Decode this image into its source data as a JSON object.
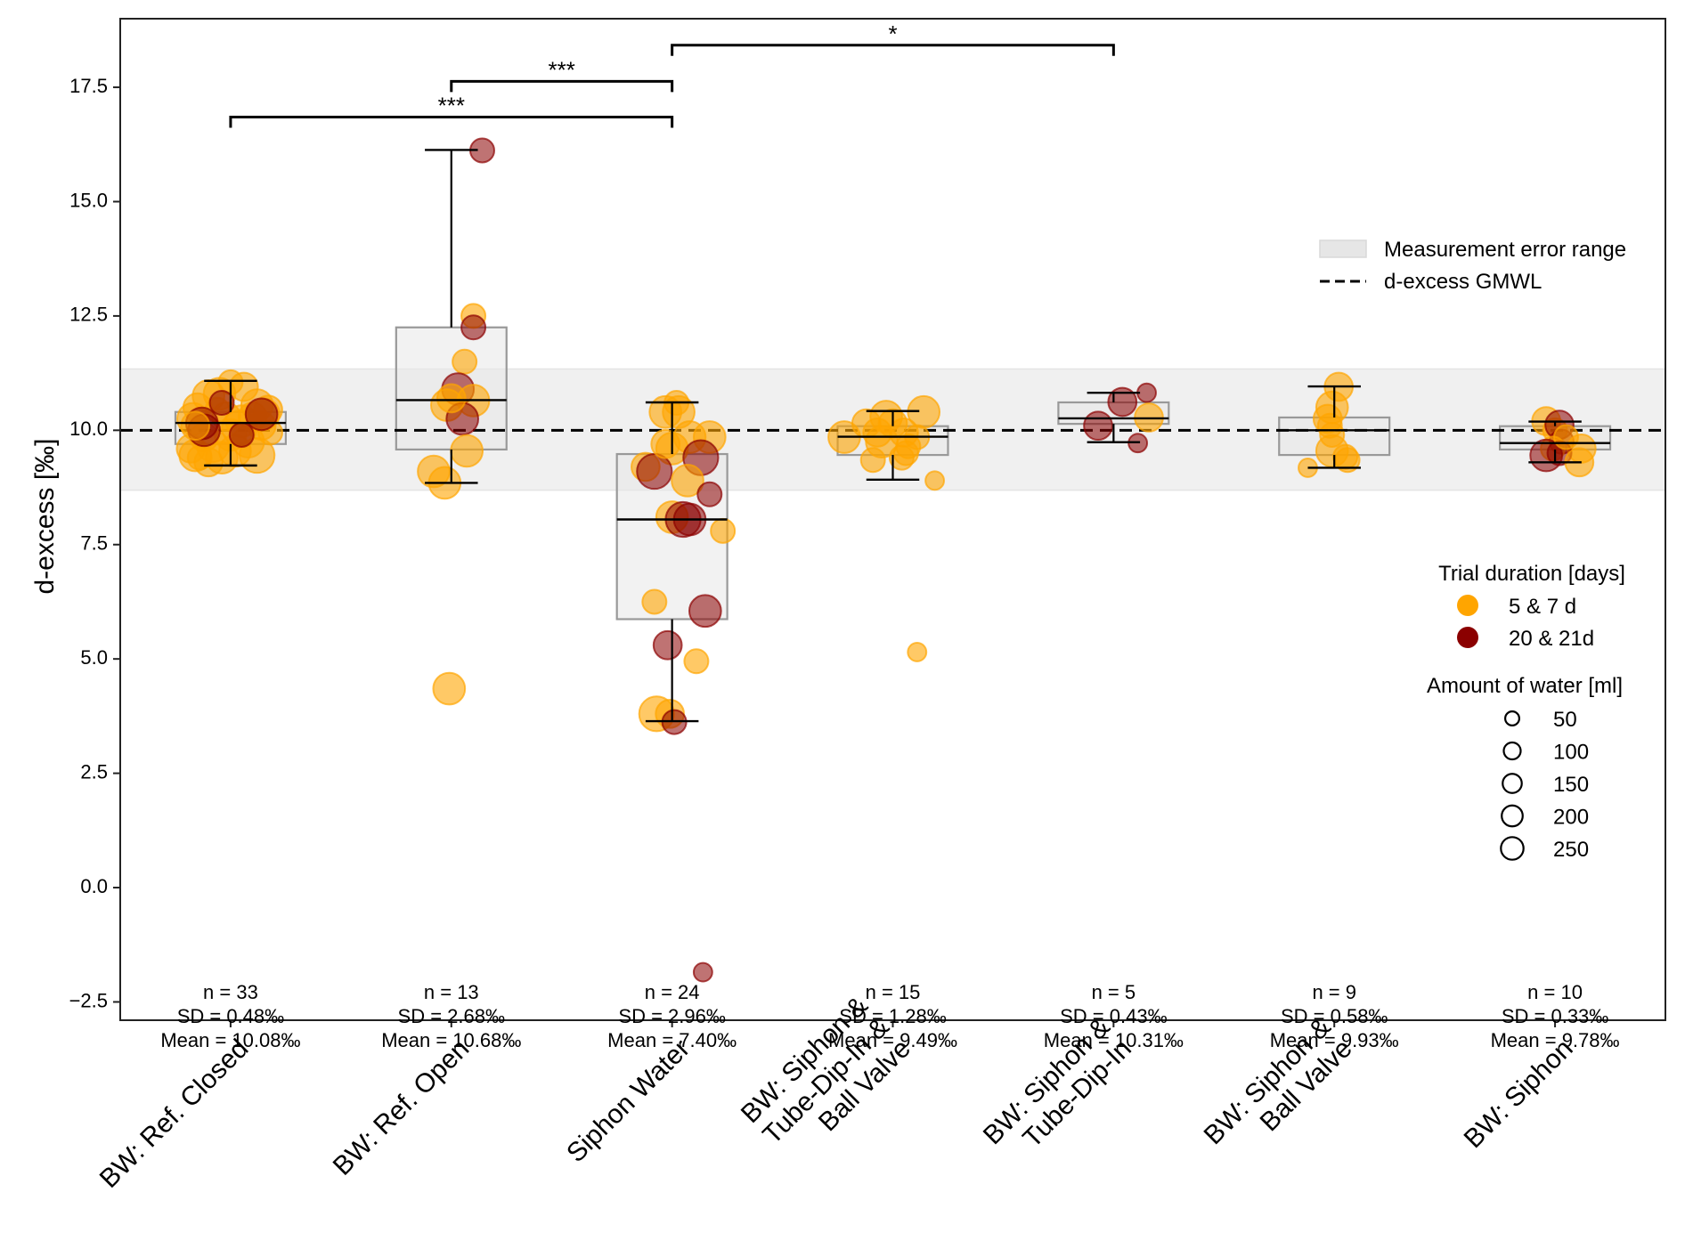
{
  "chart_data": {
    "type": "box",
    "title": "",
    "xlabel": "",
    "ylabel": "d-excess [‰]",
    "ylim": [
      -2.9,
      19.0
    ],
    "yticks": [
      -2.5,
      0.0,
      2.5,
      5.0,
      7.5,
      10.0,
      12.5,
      15.0,
      17.5
    ],
    "ytick_labels": [
      "−2.5",
      "0.0",
      "2.5",
      "5.0",
      "7.5",
      "10.0",
      "12.5",
      "15.0",
      "17.5"
    ],
    "grid": false,
    "categories": [
      [
        "BW: Ref. Closed"
      ],
      [
        "BW: Ref. Open"
      ],
      [
        "Siphon Water"
      ],
      [
        "BW: Siphon &",
        "Tube-Dip-In &",
        "Ball Valve"
      ],
      [
        "BW: Siphon &",
        "Tube-Dip-In"
      ],
      [
        "BW: Siphon &",
        "Ball Valve"
      ],
      [
        "BW: Siphon"
      ]
    ],
    "boxes": [
      {
        "whislo": 9.23,
        "q1": 9.7,
        "med": 10.16,
        "q3": 10.4,
        "whishi": 11.08
      },
      {
        "whislo": 8.85,
        "q1": 9.58,
        "med": 10.66,
        "q3": 12.25,
        "whishi": 16.13
      },
      {
        "whislo": 3.64,
        "q1": 5.87,
        "med": 8.05,
        "q3": 9.48,
        "whishi": 10.61
      },
      {
        "whislo": 8.92,
        "q1": 9.46,
        "med": 9.86,
        "q3": 10.09,
        "whishi": 10.42
      },
      {
        "whislo": 9.74,
        "q1": 10.14,
        "med": 10.26,
        "q3": 10.61,
        "whishi": 10.82
      },
      {
        "whislo": 9.18,
        "q1": 9.46,
        "med": 10.0,
        "q3": 10.28,
        "whishi": 10.96
      },
      {
        "whislo": 9.3,
        "q1": 9.58,
        "med": 9.72,
        "q3": 10.09,
        "whishi": 10.19
      }
    ],
    "stats": [
      {
        "n": "n = 33",
        "sd": "SD = 0.48‰",
        "mean": "Mean = 10.08‰"
      },
      {
        "n": "n = 13",
        "sd": "SD = 2.68‰",
        "mean": "Mean = 10.68‰"
      },
      {
        "n": "n = 24",
        "sd": "SD = 2.96‰",
        "mean": "Mean = 7.40‰"
      },
      {
        "n": "n = 15",
        "sd": "SD = 1.28‰",
        "mean": "Mean = 9.49‰"
      },
      {
        "n": "n = 5",
        "sd": "SD = 0.43‰",
        "mean": "Mean = 10.31‰"
      },
      {
        "n": "n = 9",
        "sd": "SD = 0.58‰",
        "mean": "Mean = 9.93‰"
      },
      {
        "n": "n = 10",
        "sd": "SD = 0.33‰",
        "mean": "Mean = 9.78‰"
      }
    ],
    "stats_y": -2.2,
    "reference_line": {
      "label": "d-excess GMWL",
      "value": 10.0
    },
    "error_band": {
      "label": "Measurement error range",
      "low": 8.69,
      "high": 11.34
    },
    "significance": [
      {
        "from": 0,
        "to": 2,
        "y": 16.85,
        "label": "***"
      },
      {
        "from": 1,
        "to": 2,
        "y": 17.63,
        "label": "***"
      },
      {
        "from": 2,
        "to": 4,
        "y": 18.42,
        "label": "*"
      }
    ],
    "colors": {
      "short": "#FFA500",
      "long": "#8B0000",
      "box_fill": "#e8e8e8",
      "box_edge": "#999999",
      "band": "#f0f0f0"
    },
    "legend": {
      "position": "right",
      "duration_title": "Trial duration [days]",
      "duration_items": [
        {
          "label": "5 & 7 d",
          "group": "short"
        },
        {
          "label": "20 & 21d",
          "group": "long"
        }
      ],
      "water_title": "Amount of water [ml]",
      "water_items": [
        {
          "label": "50",
          "ml": 50
        },
        {
          "label": "100",
          "ml": 100
        },
        {
          "label": "150",
          "ml": 150
        },
        {
          "label": "200",
          "ml": 200
        },
        {
          "label": "250",
          "ml": 250
        }
      ]
    },
    "points": [
      {
        "c": 0,
        "dx": -0.1,
        "y": 10.75,
        "g": "short",
        "ml": 200
      },
      {
        "c": 0,
        "dx": -0.15,
        "y": 10.5,
        "g": "short",
        "ml": 150
      },
      {
        "c": 0,
        "dx": -0.05,
        "y": 10.8,
        "g": "short",
        "ml": 200
      },
      {
        "c": 0,
        "dx": 0.12,
        "y": 10.55,
        "g": "short",
        "ml": 200
      },
      {
        "c": 0,
        "dx": 0.06,
        "y": 10.95,
        "g": "short",
        "ml": 150
      },
      {
        "c": 0,
        "dx": 0.0,
        "y": 11.05,
        "g": "short",
        "ml": 100
      },
      {
        "c": 0,
        "dx": -0.17,
        "y": 10.25,
        "g": "short",
        "ml": 200
      },
      {
        "c": 0,
        "dx": -0.02,
        "y": 10.3,
        "g": "short",
        "ml": 150
      },
      {
        "c": 0,
        "dx": 0.05,
        "y": 10.2,
        "g": "short",
        "ml": 200
      },
      {
        "c": 0,
        "dx": 0.1,
        "y": 10.3,
        "g": "short",
        "ml": 150
      },
      {
        "c": 0,
        "dx": 0.15,
        "y": 10.35,
        "g": "short",
        "ml": 200
      },
      {
        "c": 0,
        "dx": 0.18,
        "y": 9.95,
        "g": "short",
        "ml": 100
      },
      {
        "c": 0,
        "dx": -0.12,
        "y": 9.85,
        "g": "short",
        "ml": 150
      },
      {
        "c": 0,
        "dx": 0.08,
        "y": 9.75,
        "g": "short",
        "ml": 200
      },
      {
        "c": 0,
        "dx": -0.08,
        "y": 9.65,
        "g": "short",
        "ml": 200
      },
      {
        "c": 0,
        "dx": 0.02,
        "y": 9.55,
        "g": "short",
        "ml": 200
      },
      {
        "c": 0,
        "dx": -0.16,
        "y": 9.45,
        "g": "short",
        "ml": 200
      },
      {
        "c": 0,
        "dx": -0.04,
        "y": 9.4,
        "g": "short",
        "ml": 200
      },
      {
        "c": 0,
        "dx": 0.12,
        "y": 9.45,
        "g": "short",
        "ml": 250
      },
      {
        "c": 0,
        "dx": -0.1,
        "y": 9.3,
        "g": "short",
        "ml": 150
      },
      {
        "c": 0,
        "dx": -0.14,
        "y": 9.4,
        "g": "short",
        "ml": 100
      },
      {
        "c": 0,
        "dx": 0.0,
        "y": 9.9,
        "g": "short",
        "ml": 200
      },
      {
        "c": 0,
        "dx": 0.04,
        "y": 10.05,
        "g": "short",
        "ml": 250
      },
      {
        "c": 0,
        "dx": 0.14,
        "y": 10.1,
        "g": "short",
        "ml": 150
      },
      {
        "c": 0,
        "dx": -0.06,
        "y": 10.45,
        "g": "short",
        "ml": 100
      },
      {
        "c": 0,
        "dx": 0.17,
        "y": 10.45,
        "g": "short",
        "ml": 150
      },
      {
        "c": 0,
        "dx": -0.18,
        "y": 9.6,
        "g": "short",
        "ml": 150
      },
      {
        "c": 0,
        "dx": -0.13,
        "y": 10.15,
        "g": "long",
        "ml": 200
      },
      {
        "c": 0,
        "dx": -0.12,
        "y": 10.0,
        "g": "long",
        "ml": 200
      },
      {
        "c": 0,
        "dx": -0.04,
        "y": 10.6,
        "g": "long",
        "ml": 100
      },
      {
        "c": 0,
        "dx": 0.14,
        "y": 10.35,
        "g": "long",
        "ml": 200
      },
      {
        "c": 0,
        "dx": 0.05,
        "y": 9.9,
        "g": "long",
        "ml": 100
      },
      {
        "c": 0,
        "dx": -0.16,
        "y": 10.1,
        "g": "short",
        "ml": 150
      },
      {
        "c": 1,
        "dx": 0.1,
        "y": 12.5,
        "g": "short",
        "ml": 100
      },
      {
        "c": 1,
        "dx": 0.1,
        "y": 12.25,
        "g": "long",
        "ml": 100
      },
      {
        "c": 1,
        "dx": 0.06,
        "y": 11.5,
        "g": "short",
        "ml": 100
      },
      {
        "c": 1,
        "dx": 0.03,
        "y": 10.9,
        "g": "long",
        "ml": 200
      },
      {
        "c": 1,
        "dx": 0.1,
        "y": 10.65,
        "g": "short",
        "ml": 200
      },
      {
        "c": 1,
        "dx": -0.02,
        "y": 10.55,
        "g": "short",
        "ml": 200
      },
      {
        "c": 1,
        "dx": 0.05,
        "y": 10.25,
        "g": "long",
        "ml": 200
      },
      {
        "c": 1,
        "dx": 0.07,
        "y": 9.55,
        "g": "short",
        "ml": 200
      },
      {
        "c": 1,
        "dx": -0.08,
        "y": 9.1,
        "g": "short",
        "ml": 200
      },
      {
        "c": 1,
        "dx": -0.03,
        "y": 8.85,
        "g": "short",
        "ml": 200
      },
      {
        "c": 1,
        "dx": 0.14,
        "y": 16.12,
        "g": "long",
        "ml": 100
      },
      {
        "c": 1,
        "dx": -0.01,
        "y": 4.35,
        "g": "short",
        "ml": 200
      },
      {
        "c": 1,
        "dx": 0.0,
        "y": 10.7,
        "g": "short",
        "ml": 150
      },
      {
        "c": 2,
        "dx": 0.02,
        "y": 10.6,
        "g": "short",
        "ml": 100
      },
      {
        "c": 2,
        "dx": -0.03,
        "y": 10.4,
        "g": "short",
        "ml": 200
      },
      {
        "c": 2,
        "dx": 0.03,
        "y": 10.4,
        "g": "short",
        "ml": 200
      },
      {
        "c": 2,
        "dx": 0.08,
        "y": 9.85,
        "g": "short",
        "ml": 200
      },
      {
        "c": 2,
        "dx": 0.17,
        "y": 9.85,
        "g": "short",
        "ml": 200
      },
      {
        "c": 2,
        "dx": 0.0,
        "y": 9.6,
        "g": "short",
        "ml": 200
      },
      {
        "c": 2,
        "dx": 0.13,
        "y": 9.4,
        "g": "long",
        "ml": 250
      },
      {
        "c": 2,
        "dx": -0.12,
        "y": 9.2,
        "g": "short",
        "ml": 150
      },
      {
        "c": 2,
        "dx": -0.08,
        "y": 9.1,
        "g": "long",
        "ml": 250
      },
      {
        "c": 2,
        "dx": 0.07,
        "y": 8.9,
        "g": "short",
        "ml": 200
      },
      {
        "c": 2,
        "dx": 0.17,
        "y": 8.6,
        "g": "long",
        "ml": 100
      },
      {
        "c": 2,
        "dx": 0.0,
        "y": 8.1,
        "g": "short",
        "ml": 200
      },
      {
        "c": 2,
        "dx": 0.05,
        "y": 8.05,
        "g": "long",
        "ml": 250
      },
      {
        "c": 2,
        "dx": 0.08,
        "y": 8.05,
        "g": "long",
        "ml": 200
      },
      {
        "c": 2,
        "dx": 0.23,
        "y": 7.8,
        "g": "short",
        "ml": 100
      },
      {
        "c": 2,
        "dx": -0.08,
        "y": 6.25,
        "g": "short",
        "ml": 100
      },
      {
        "c": 2,
        "dx": 0.15,
        "y": 6.05,
        "g": "long",
        "ml": 200
      },
      {
        "c": 2,
        "dx": -0.02,
        "y": 5.3,
        "g": "long",
        "ml": 150
      },
      {
        "c": 2,
        "dx": 0.11,
        "y": 4.95,
        "g": "short",
        "ml": 100
      },
      {
        "c": 2,
        "dx": -0.07,
        "y": 3.8,
        "g": "short",
        "ml": 250
      },
      {
        "c": 2,
        "dx": -0.01,
        "y": 3.8,
        "g": "short",
        "ml": 150
      },
      {
        "c": 2,
        "dx": 0.01,
        "y": 3.62,
        "g": "long",
        "ml": 100
      },
      {
        "c": 2,
        "dx": 0.14,
        "y": -1.85,
        "g": "long",
        "ml": 50
      },
      {
        "c": 2,
        "dx": -0.03,
        "y": 9.7,
        "g": "short",
        "ml": 150
      },
      {
        "c": 3,
        "dx": -0.22,
        "y": 9.85,
        "g": "short",
        "ml": 200
      },
      {
        "c": 3,
        "dx": -0.12,
        "y": 10.15,
        "g": "short",
        "ml": 150
      },
      {
        "c": 3,
        "dx": -0.03,
        "y": 10.3,
        "g": "short",
        "ml": 200
      },
      {
        "c": 3,
        "dx": 0.14,
        "y": 10.4,
        "g": "short",
        "ml": 200
      },
      {
        "c": 3,
        "dx": 0.0,
        "y": 10.15,
        "g": "short",
        "ml": 150
      },
      {
        "c": 3,
        "dx": 0.05,
        "y": 9.95,
        "g": "short",
        "ml": 150
      },
      {
        "c": 3,
        "dx": -0.05,
        "y": 9.75,
        "g": "short",
        "ml": 200
      },
      {
        "c": 3,
        "dx": 0.07,
        "y": 9.65,
        "g": "short",
        "ml": 100
      },
      {
        "c": 3,
        "dx": 0.11,
        "y": 9.85,
        "g": "short",
        "ml": 100
      },
      {
        "c": 3,
        "dx": -0.07,
        "y": 9.95,
        "g": "short",
        "ml": 150
      },
      {
        "c": 3,
        "dx": -0.09,
        "y": 9.35,
        "g": "short",
        "ml": 100
      },
      {
        "c": 3,
        "dx": 0.04,
        "y": 9.4,
        "g": "short",
        "ml": 100
      },
      {
        "c": 3,
        "dx": 0.06,
        "y": 9.5,
        "g": "short",
        "ml": 100
      },
      {
        "c": 3,
        "dx": 0.19,
        "y": 8.9,
        "g": "short",
        "ml": 50
      },
      {
        "c": 3,
        "dx": 0.11,
        "y": 5.15,
        "g": "short",
        "ml": 50
      },
      {
        "c": 4,
        "dx": 0.15,
        "y": 10.82,
        "g": "long",
        "ml": 50
      },
      {
        "c": 4,
        "dx": 0.04,
        "y": 10.62,
        "g": "long",
        "ml": 150
      },
      {
        "c": 4,
        "dx": 0.16,
        "y": 10.28,
        "g": "short",
        "ml": 150
      },
      {
        "c": 4,
        "dx": -0.07,
        "y": 10.1,
        "g": "long",
        "ml": 150
      },
      {
        "c": 4,
        "dx": 0.11,
        "y": 9.72,
        "g": "long",
        "ml": 50
      },
      {
        "c": 5,
        "dx": 0.02,
        "y": 10.95,
        "g": "short",
        "ml": 150
      },
      {
        "c": 5,
        "dx": -0.01,
        "y": 10.5,
        "g": "short",
        "ml": 200
      },
      {
        "c": 5,
        "dx": -0.03,
        "y": 10.25,
        "g": "short",
        "ml": 150
      },
      {
        "c": 5,
        "dx": -0.02,
        "y": 10.1,
        "g": "short",
        "ml": 100
      },
      {
        "c": 5,
        "dx": -0.01,
        "y": 9.9,
        "g": "short",
        "ml": 100
      },
      {
        "c": 5,
        "dx": -0.01,
        "y": 9.55,
        "g": "short",
        "ml": 200
      },
      {
        "c": 5,
        "dx": 0.05,
        "y": 9.42,
        "g": "short",
        "ml": 100
      },
      {
        "c": 5,
        "dx": 0.06,
        "y": 9.35,
        "g": "short",
        "ml": 100
      },
      {
        "c": 5,
        "dx": -0.12,
        "y": 9.18,
        "g": "short",
        "ml": 50
      },
      {
        "c": 6,
        "dx": -0.04,
        "y": 10.2,
        "g": "short",
        "ml": 150
      },
      {
        "c": 6,
        "dx": 0.0,
        "y": 10.0,
        "g": "short",
        "ml": 100
      },
      {
        "c": 6,
        "dx": 0.02,
        "y": 10.12,
        "g": "long",
        "ml": 150
      },
      {
        "c": 6,
        "dx": 0.03,
        "y": 9.75,
        "g": "long",
        "ml": 100
      },
      {
        "c": 6,
        "dx": 0.12,
        "y": 9.6,
        "g": "short",
        "ml": 150
      },
      {
        "c": 6,
        "dx": -0.01,
        "y": 9.6,
        "g": "short",
        "ml": 100
      },
      {
        "c": 6,
        "dx": -0.04,
        "y": 9.45,
        "g": "long",
        "ml": 200
      },
      {
        "c": 6,
        "dx": 0.02,
        "y": 9.5,
        "g": "long",
        "ml": 100
      },
      {
        "c": 6,
        "dx": 0.11,
        "y": 9.3,
        "g": "short",
        "ml": 150
      },
      {
        "c": 6,
        "dx": 0.05,
        "y": 9.85,
        "g": "short",
        "ml": 100
      }
    ]
  }
}
